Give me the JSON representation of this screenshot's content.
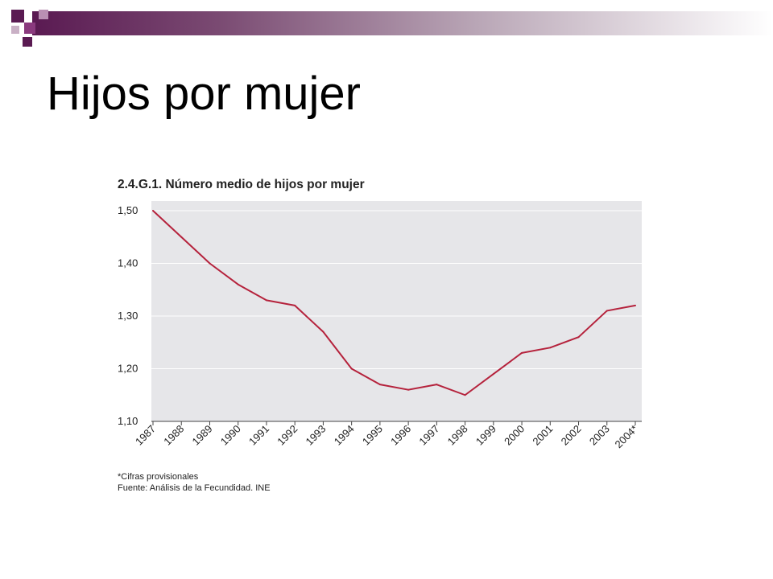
{
  "slide": {
    "title": "Hijos por mujer"
  },
  "colors": {
    "line": "#b5223c",
    "plot_background": "#e6e6e9",
    "gridline": "#ffffff",
    "accent_dark": "#5a1a52",
    "accent_mid": "#8a3a7e"
  },
  "chart_data": {
    "type": "line",
    "title": "2.4.G.1. Número medio de hijos por mujer",
    "x": [
      "1987",
      "1988",
      "1989",
      "1990",
      "1991",
      "1992",
      "1993",
      "1994",
      "1995",
      "1996",
      "1997",
      "1998",
      "1999",
      "2000",
      "2001",
      "2002",
      "2003",
      "2004*"
    ],
    "series": [
      {
        "values": [
          1.5,
          1.45,
          1.4,
          1.36,
          1.33,
          1.32,
          1.27,
          1.2,
          1.17,
          1.16,
          1.17,
          1.15,
          1.19,
          1.23,
          1.24,
          1.26,
          1.31,
          1.32
        ]
      }
    ],
    "ylim": [
      1.1,
      1.5
    ],
    "yticks": [
      "1,50",
      "1,40",
      "1,30",
      "1,20",
      "1,10"
    ],
    "grid": true,
    "notes": [
      "*Cifras provisionales",
      "Fuente: Análisis de la Fecundidad. INE"
    ]
  }
}
